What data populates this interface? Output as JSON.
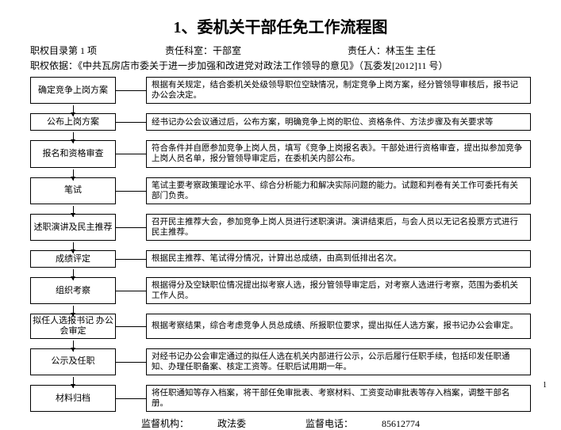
{
  "title": "1、委机关干部任免工作流程图",
  "meta": {
    "item": "职权目录第 1 项",
    "dept_label": "责任科室：",
    "dept": "干部室",
    "person_label": "责任人：",
    "person": "林玉生  主任"
  },
  "basis": "职权依据：《中共瓦房店市委关于进一步加强和改进党对政法工作领导的意见》（瓦委发[2012]11 号）",
  "steps": [
    {
      "left": "确定竞争上岗方案",
      "right": "根据有关规定，结合委机关处级领导职位空缺情况，制定竞争上岗方案，经分管领导审核后，报书记办公会决定。"
    },
    {
      "left": "公布上岗方案",
      "right": "经书记办公会议通过后，公布方案，明确竞争上岗的职位、资格条件、方法步骤及有关要求等"
    },
    {
      "left": "报名和资格审查",
      "right": "符合条件并自愿参加竞争上岗人员，填写《竞争上岗报名表》。干部处进行资格审查，提出拟参加竞争上岗人员名单，报分管领导审定后，在委机关内部公布。"
    },
    {
      "left": "笔试",
      "right": "笔试主要考察政策理论水平、综合分析能力和解决实际问题的能力。试题和判卷有关工作可委托有关部门负责。"
    },
    {
      "left": "述职演讲及民主推荐",
      "right": "召开民主推荐大会，参加竞争上岗人员进行述职演讲。演讲结束后，与会人员以无记名投票方式进行民主推荐。"
    },
    {
      "left": "成绩评定",
      "right": "根据民主推荐、笔试得分情况，计算出总成绩，由高到低排出名次。"
    },
    {
      "left": "组织考察",
      "right": "根据得分及空缺职位情况提出拟考察人选，报分管领导审定后，对考察人选进行考察，范围为委机关工作人员。"
    },
    {
      "left": "拟任人选报书记\n办公会审定",
      "right": "根据考察结果，综合考虑竞争人员总成绩、所报职位要求，提出拟任人选方案，报书记办公会审定。"
    },
    {
      "left": "公示及任职",
      "right": "对经书记办公会审定通过的拟任人选在机关内部进行公示，公示后履行任职手续，包括印发任职通知、办理任职备案、核定工资等。任职后试用期一年。"
    },
    {
      "left": "材料归档",
      "right": "将任职通知等存入档案，将干部任免审批表、考察材料、工资变动审批表等存入档案，调整干部名册。"
    }
  ],
  "footer": {
    "org_label": "监督机构：",
    "org": "政法委",
    "tel_label": "监督电话：",
    "tel": "85612774"
  },
  "page_num": "1"
}
